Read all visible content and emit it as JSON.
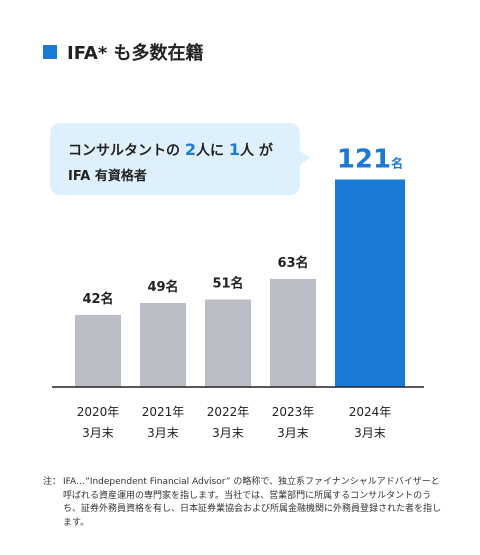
{
  "header": {
    "title": "IFA* も多数在籍"
  },
  "callout": {
    "line1_pre": "コンサルタントの ",
    "line1_num1": "2",
    "line1_mid1": "人に ",
    "line1_num2": "1",
    "line1_mid2": "人",
    "line1_post": " が",
    "line2": "IFA 有資格者"
  },
  "colors": {
    "accent": "#1b7ad6",
    "bar_gray": "#bcbec7",
    "bubble": "#def0fb",
    "axis": "#222222"
  },
  "chart_data": {
    "type": "bar",
    "title": "IFA* も多数在籍",
    "categories": [
      [
        "2020年",
        "3月末"
      ],
      [
        "2021年",
        "3月末"
      ],
      [
        "2022年",
        "3月末"
      ],
      [
        "2023年",
        "3月末"
      ],
      [
        "2024年",
        "3月末"
      ]
    ],
    "values": [
      42,
      49,
      51,
      63,
      121
    ],
    "value_labels": [
      "42名",
      "49名",
      "51名",
      "63名",
      "121名"
    ],
    "highlight_index": 4,
    "unit": "名",
    "ylim": [
      0,
      125
    ],
    "grid": false
  },
  "note": {
    "prefix": "注：",
    "text": "IFA…”Independent Financial Advisor” の略称で、独立系ファイナンシャルアドバイザーと呼ばれる資産運用の専門家を指します。当社では、営業部門に所属するコンサルタントのうち、証券外務員資格を有し、日本証券業協会および所属金融機関に外務員登録された者を指します。"
  }
}
